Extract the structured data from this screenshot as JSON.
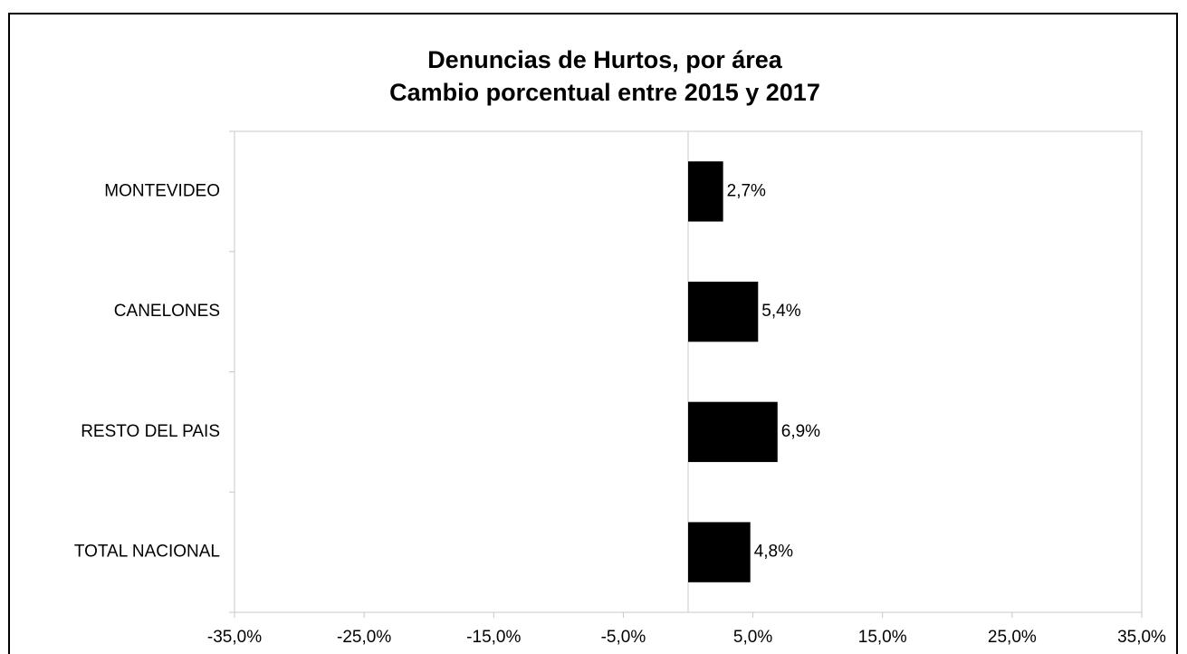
{
  "chart_data": {
    "type": "barh",
    "title": "Denuncias de Hurtos, por área",
    "subtitle": "Cambio porcentual entre 2015 y 2017",
    "categories": [
      "MONTEVIDEO",
      "CANELONES",
      "RESTO DEL PAIS",
      "TOTAL NACIONAL"
    ],
    "values": [
      2.7,
      5.4,
      6.9,
      4.8
    ],
    "value_labels": [
      "2,7%",
      "5,4%",
      "6,9%",
      "4,8%"
    ],
    "color": "#000000",
    "xlim": [
      -35,
      35
    ],
    "xticks": [
      {
        "value": -35,
        "label": "-35,0%"
      },
      {
        "value": -25,
        "label": "-25,0%"
      },
      {
        "value": -15,
        "label": "-15,0%"
      },
      {
        "value": -5,
        "label": "-5,0%"
      },
      {
        "value": 5,
        "label": "5,0%"
      },
      {
        "value": 15,
        "label": "15,0%"
      },
      {
        "value": 25,
        "label": "25,0%"
      },
      {
        "value": 35,
        "label": "35,0%"
      }
    ],
    "grid": false
  }
}
